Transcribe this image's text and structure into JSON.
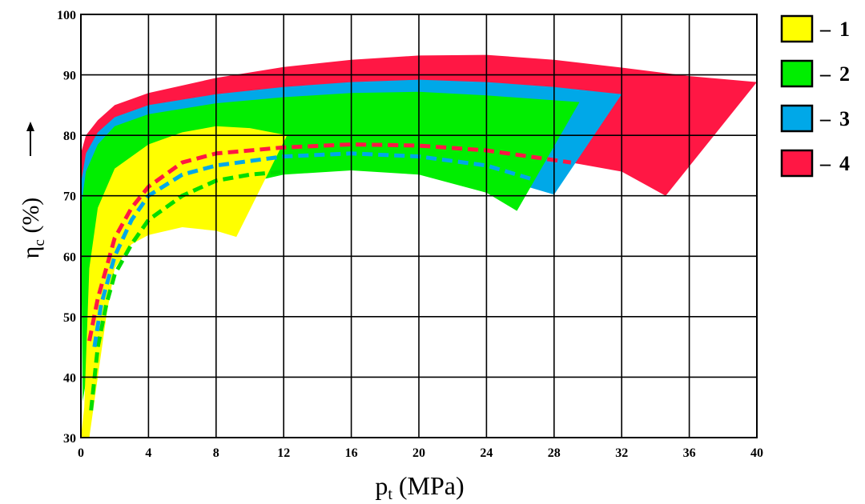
{
  "chart_data": {
    "type": "area",
    "xlabel": {
      "main": "p",
      "sub": "t",
      "unit": "(MPa)"
    },
    "ylabel": {
      "main": "η",
      "sub": "c",
      "unit": "(%)"
    },
    "xlim": [
      0,
      40
    ],
    "ylim": [
      30,
      100
    ],
    "x_ticks": [
      0,
      4,
      8,
      12,
      16,
      20,
      24,
      28,
      32,
      36,
      40
    ],
    "y_ticks": [
      30,
      40,
      50,
      60,
      70,
      80,
      90,
      100
    ],
    "grid": true,
    "legend_position": "right",
    "legend_prefix": "–",
    "series": [
      {
        "name": "1",
        "color": "#ffff00",
        "upper": [
          [
            0.2,
            35
          ],
          [
            0.5,
            58
          ],
          [
            1,
            68
          ],
          [
            2,
            74.5
          ],
          [
            4,
            78.5
          ],
          [
            6,
            80.5
          ],
          [
            8,
            81.5
          ],
          [
            10,
            81.2
          ],
          [
            12.2,
            80
          ]
        ],
        "lower": [
          [
            0,
            30
          ],
          [
            0.5,
            30
          ],
          [
            1,
            40
          ],
          [
            1.5,
            50
          ],
          [
            2,
            58
          ],
          [
            3,
            62
          ],
          [
            4,
            63.5
          ],
          [
            6,
            64.8
          ],
          [
            8,
            64.2
          ],
          [
            9.2,
            63.2
          ]
        ],
        "dashed_line": {
          "color": "#ffffff",
          "points": []
        }
      },
      {
        "name": "2",
        "color": "#00ee00",
        "upper": [
          [
            0,
            68
          ],
          [
            0.3,
            74
          ],
          [
            1,
            78.5
          ],
          [
            2,
            81.5
          ],
          [
            4,
            83.5
          ],
          [
            8,
            85.3
          ],
          [
            12,
            86.3
          ],
          [
            16,
            87
          ],
          [
            20,
            87.2
          ],
          [
            24,
            86.6
          ],
          [
            29.5,
            85.5
          ]
        ],
        "lower": [
          [
            0.1,
            36
          ],
          [
            0.6,
            44
          ],
          [
            1.2,
            54
          ],
          [
            2,
            60
          ],
          [
            3,
            64
          ],
          [
            4,
            66.5
          ],
          [
            8,
            71
          ],
          [
            12,
            73.5
          ],
          [
            16,
            74.2
          ],
          [
            20,
            73.5
          ],
          [
            24,
            70.5
          ],
          [
            25.8,
            67.5
          ]
        ],
        "dashed_line": {
          "color": "#00dd00",
          "points": [
            [
              0.6,
              34.5
            ],
            [
              1,
              45
            ],
            [
              1.5,
              52
            ],
            [
              2,
              57
            ],
            [
              3,
              62
            ],
            [
              4,
              66
            ],
            [
              6,
              70
            ],
            [
              8,
              72.5
            ],
            [
              10,
              73.5
            ],
            [
              12,
              74
            ]
          ]
        }
      },
      {
        "name": "3",
        "color": "#00a8e8",
        "upper": [
          [
            0,
            72
          ],
          [
            0.3,
            77
          ],
          [
            1,
            80.5
          ],
          [
            2,
            83
          ],
          [
            4,
            85
          ],
          [
            8,
            86.8
          ],
          [
            12,
            88
          ],
          [
            16,
            88.8
          ],
          [
            20,
            89.2
          ],
          [
            24,
            88.8
          ],
          [
            28,
            88
          ],
          [
            32,
            86.8
          ]
        ],
        "lower": [
          [
            0.2,
            50
          ],
          [
            0.6,
            58
          ],
          [
            1.2,
            64
          ],
          [
            2,
            68
          ],
          [
            4,
            72
          ],
          [
            8,
            74.5
          ],
          [
            16,
            75
          ],
          [
            20,
            74.8
          ],
          [
            24,
            73.5
          ],
          [
            28,
            70.2
          ]
        ],
        "dashed_line": {
          "color": "#00a8e8",
          "points": [
            [
              0.8,
              45
            ],
            [
              1.2,
              52
            ],
            [
              2,
              60
            ],
            [
              3,
              66
            ],
            [
              4,
              70
            ],
            [
              6,
              73.5
            ],
            [
              8,
              75
            ],
            [
              12,
              76.5
            ],
            [
              16,
              77
            ],
            [
              20,
              76.5
            ],
            [
              24,
              75
            ],
            [
              27,
              72.5
            ]
          ]
        }
      },
      {
        "name": "4",
        "color": "#ff1744",
        "upper": [
          [
            0,
            77
          ],
          [
            0.3,
            80
          ],
          [
            1,
            82.5
          ],
          [
            2,
            85
          ],
          [
            4,
            87
          ],
          [
            8,
            89.5
          ],
          [
            12,
            91.3
          ],
          [
            16,
            92.5
          ],
          [
            20,
            93.2
          ],
          [
            24,
            93.3
          ],
          [
            28,
            92.5
          ],
          [
            32,
            91.2
          ],
          [
            36,
            89.8
          ],
          [
            40,
            88.8
          ]
        ],
        "lower": [
          [
            0.1,
            68
          ],
          [
            0.6,
            73
          ],
          [
            1.2,
            75
          ],
          [
            2,
            77
          ],
          [
            4,
            78
          ],
          [
            8,
            78.6
          ],
          [
            16,
            79.2
          ],
          [
            20,
            79
          ],
          [
            24,
            78
          ],
          [
            28,
            76
          ],
          [
            32,
            74
          ],
          [
            34.6,
            70
          ]
        ],
        "dashed_line": {
          "color": "#ff1744",
          "points": [
            [
              0.5,
              46
            ],
            [
              1,
              53
            ],
            [
              1.5,
              58
            ],
            [
              2,
              63
            ],
            [
              3,
              68
            ],
            [
              4,
              71.5
            ],
            [
              6,
              75.5
            ],
            [
              8,
              77
            ],
            [
              12,
              78
            ],
            [
              16,
              78.5
            ],
            [
              20,
              78.3
            ],
            [
              24,
              77.5
            ],
            [
              29,
              75.5
            ]
          ]
        }
      }
    ]
  }
}
